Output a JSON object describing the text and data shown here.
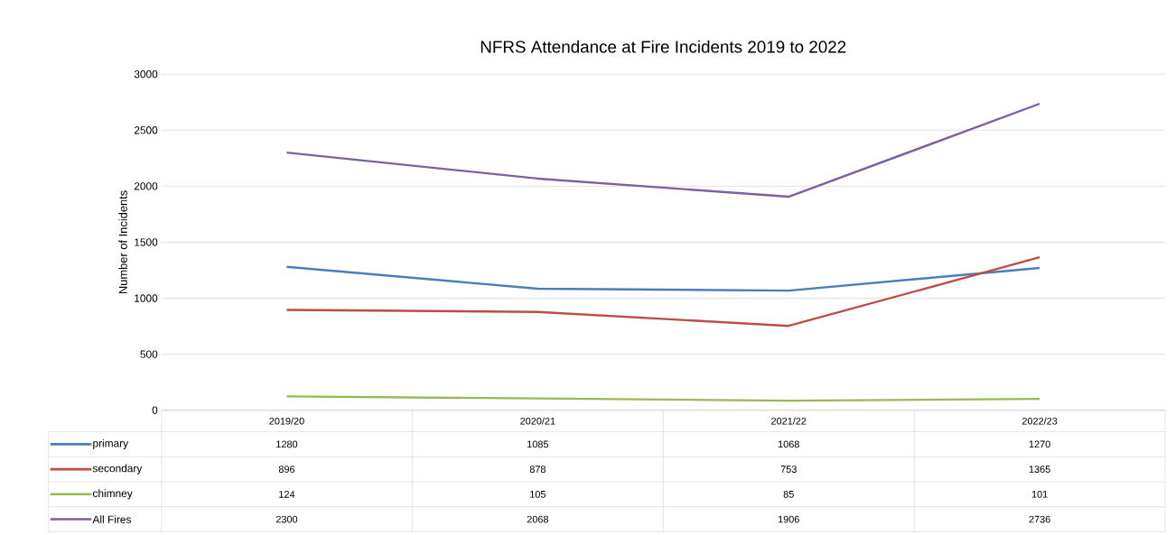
{
  "chart_data": {
    "type": "line",
    "title": "NFRS Attendance at Fire Incidents 2019 to 2022",
    "ylabel": "Number of Incidents",
    "categories": [
      "2019/20",
      "2020/21",
      "2021/22",
      "2022/23"
    ],
    "series": [
      {
        "name": "primary",
        "color": "#4a7ebb",
        "values": [
          1280,
          1085,
          1068,
          1270
        ]
      },
      {
        "name": "secondary",
        "color": "#be4b48",
        "values": [
          896,
          878,
          753,
          1365
        ]
      },
      {
        "name": "chimney",
        "color": "#98b954",
        "values": [
          124,
          105,
          85,
          101
        ]
      },
      {
        "name": "All Fires",
        "color": "#7d60a0",
        "values": [
          2300,
          2068,
          1906,
          2736
        ]
      }
    ],
    "ylim": [
      0,
      3000
    ],
    "yticks": [
      0,
      500,
      1000,
      1500,
      2000,
      2500,
      3000
    ],
    "grid": "y",
    "legend": "bottom",
    "data_labels": true,
    "marker": "none",
    "line_style": "solid"
  }
}
